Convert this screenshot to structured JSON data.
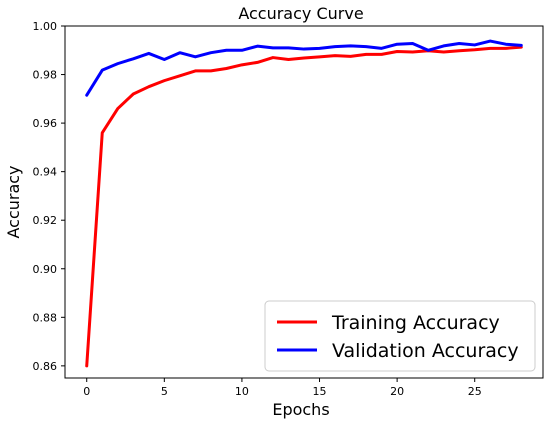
{
  "chart_data": {
    "type": "line",
    "title": "Accuracy Curve",
    "xlabel": "Epochs",
    "ylabel": "Accuracy",
    "xlim": [
      -1.4,
      29.4
    ],
    "ylim": [
      0.855,
      1.0
    ],
    "x_ticks": [
      0,
      5,
      10,
      15,
      20,
      25
    ],
    "y_ticks": [
      0.86,
      0.88,
      0.9,
      0.92,
      0.94,
      0.96,
      0.98,
      1.0
    ],
    "y_tick_labels": [
      "0.86",
      "0.88",
      "0.90",
      "0.92",
      "0.94",
      "0.96",
      "0.98",
      "1.00"
    ],
    "grid": false,
    "legend_position": "bottom-right",
    "x": [
      0,
      1,
      2,
      3,
      4,
      5,
      6,
      7,
      8,
      9,
      10,
      11,
      12,
      13,
      14,
      15,
      16,
      17,
      18,
      19,
      20,
      21,
      22,
      23,
      24,
      25,
      26,
      27,
      28
    ],
    "series": [
      {
        "name": "Training Accuracy",
        "color": "#ff0000",
        "values": [
          0.86,
          0.956,
          0.966,
          0.972,
          0.975,
          0.9775,
          0.9795,
          0.9815,
          0.9815,
          0.9825,
          0.984,
          0.985,
          0.987,
          0.9862,
          0.9868,
          0.9873,
          0.9878,
          0.9875,
          0.9883,
          0.9883,
          0.9895,
          0.9893,
          0.9898,
          0.9893,
          0.9898,
          0.9902,
          0.9908,
          0.9908,
          0.9913
        ]
      },
      {
        "name": "Validation Accuracy",
        "color": "#0000ff",
        "values": [
          0.9715,
          0.9818,
          0.9845,
          0.9865,
          0.9887,
          0.9862,
          0.989,
          0.9873,
          0.989,
          0.99,
          0.99,
          0.9917,
          0.991,
          0.991,
          0.9905,
          0.9908,
          0.9915,
          0.9918,
          0.9915,
          0.9908,
          0.9925,
          0.9928,
          0.99,
          0.9918,
          0.9928,
          0.9922,
          0.9938,
          0.9925,
          0.992
        ]
      }
    ]
  }
}
